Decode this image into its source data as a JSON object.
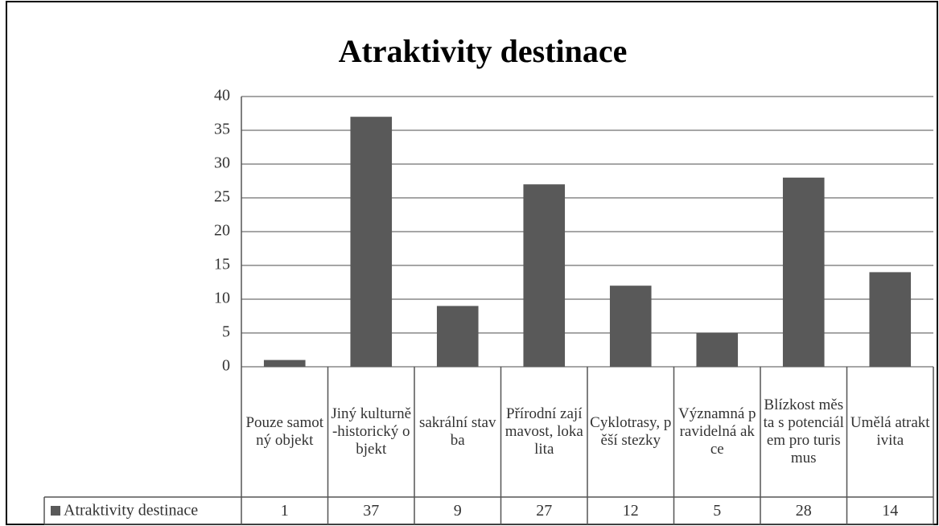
{
  "chart_data": {
    "type": "bar",
    "title": "Atraktivity destinace",
    "categories": [
      "Pouze samotný objekt",
      "Jiný kulturně-historický objekt",
      "sakrální stavba",
      "Přírodní zajímavost, lokalita",
      "Cyklotrasy, pěší stezky",
      "Významná pravidelná akce",
      "Blízkost města s potenciálem pro turismus",
      "Umělá atraktivita"
    ],
    "series": [
      {
        "name": "Atraktivity destinace",
        "color": "#595959",
        "values": [
          1,
          37,
          9,
          27,
          12,
          5,
          28,
          14
        ]
      }
    ],
    "ylim": [
      0,
      40
    ],
    "yticks": [
      0,
      5,
      10,
      15,
      20,
      25,
      30,
      35,
      40
    ],
    "grid": true,
    "data_table": true
  }
}
